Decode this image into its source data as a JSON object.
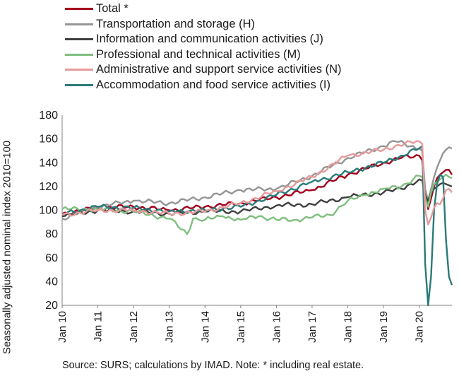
{
  "chart_data": {
    "type": "line",
    "ylabel": "Seasonally adjusted nominal index 2010=100",
    "ylim": [
      20,
      180
    ],
    "yticks": [
      20,
      40,
      60,
      80,
      100,
      120,
      140,
      160,
      180
    ],
    "xticks": [
      "Jan 10",
      "Jan 11",
      "Jan 12",
      "Jan 13",
      "Jan 14",
      "Jan 15",
      "Jan 16",
      "Jan 17",
      "Jan 18",
      "Jan 19",
      "Jan 20"
    ],
    "x_start": "2010-01",
    "x_end": "2020-12",
    "frequency": "monthly",
    "legend_position": "top",
    "grid": false,
    "source": "Source:  SURS; calculations by IMAD. Note: * including real estate.",
    "series": [
      {
        "name": "Total *",
        "color": "#a3001b",
        "points": [
          [
            "2010-01",
            97
          ],
          [
            "2011-01",
            102
          ],
          [
            "2012-01",
            103
          ],
          [
            "2013-01",
            100
          ],
          [
            "2014-01",
            103
          ],
          [
            "2015-01",
            106
          ],
          [
            "2016-01",
            111
          ],
          [
            "2017-01",
            117
          ],
          [
            "2018-01",
            130
          ],
          [
            "2019-01",
            140
          ],
          [
            "2019-07",
            144
          ],
          [
            "2020-01",
            146
          ],
          [
            "2020-02",
            142
          ],
          [
            "2020-03",
            115
          ],
          [
            "2020-04",
            101
          ],
          [
            "2020-05",
            110
          ],
          [
            "2020-06",
            120
          ],
          [
            "2020-07",
            127
          ],
          [
            "2020-08",
            130
          ],
          [
            "2020-09",
            132
          ],
          [
            "2020-10",
            134
          ],
          [
            "2020-11",
            134
          ],
          [
            "2020-12",
            130
          ]
        ]
      },
      {
        "name": "Transportation and storage (H)",
        "color": "#959595",
        "points": [
          [
            "2010-01",
            93
          ],
          [
            "2011-01",
            103
          ],
          [
            "2012-01",
            108
          ],
          [
            "2013-01",
            106
          ],
          [
            "2014-01",
            111
          ],
          [
            "2015-01",
            117
          ],
          [
            "2016-01",
            118
          ],
          [
            "2017-01",
            129
          ],
          [
            "2018-01",
            144
          ],
          [
            "2019-01",
            154
          ],
          [
            "2019-05",
            158
          ],
          [
            "2020-01",
            152
          ],
          [
            "2020-02",
            150
          ],
          [
            "2020-03",
            118
          ],
          [
            "2020-04",
            108
          ],
          [
            "2020-05",
            118
          ],
          [
            "2020-06",
            128
          ],
          [
            "2020-07",
            136
          ],
          [
            "2020-08",
            142
          ],
          [
            "2020-09",
            148
          ],
          [
            "2020-10",
            151
          ],
          [
            "2020-11",
            153
          ],
          [
            "2020-12",
            152
          ]
        ]
      },
      {
        "name": "Information and communication activities (J)",
        "color": "#404040",
        "points": [
          [
            "2010-01",
            95
          ],
          [
            "2011-01",
            100
          ],
          [
            "2012-01",
            99
          ],
          [
            "2013-01",
            97
          ],
          [
            "2014-01",
            99
          ],
          [
            "2015-01",
            99
          ],
          [
            "2016-01",
            104
          ],
          [
            "2017-01",
            105
          ],
          [
            "2018-01",
            111
          ],
          [
            "2019-01",
            115
          ],
          [
            "2019-07",
            118
          ],
          [
            "2020-01",
            126
          ],
          [
            "2020-02",
            125
          ],
          [
            "2020-03",
            112
          ],
          [
            "2020-04",
            108
          ],
          [
            "2020-05",
            115
          ],
          [
            "2020-06",
            118
          ],
          [
            "2020-07",
            120
          ],
          [
            "2020-08",
            122
          ],
          [
            "2020-09",
            123
          ],
          [
            "2020-10",
            122
          ],
          [
            "2020-11",
            121
          ],
          [
            "2020-12",
            120
          ]
        ]
      },
      {
        "name": "Professional and technical activities (M)",
        "color": "#7fbf7f",
        "points": [
          [
            "2010-01",
            101
          ],
          [
            "2011-01",
            101
          ],
          [
            "2012-01",
            99
          ],
          [
            "2013-01",
            93
          ],
          [
            "2013-07",
            80
          ],
          [
            "2013-09",
            93
          ],
          [
            "2014-01",
            92
          ],
          [
            "2014-07",
            95
          ],
          [
            "2015-01",
            92
          ],
          [
            "2015-07",
            95
          ],
          [
            "2016-01",
            92
          ],
          [
            "2016-07",
            92
          ],
          [
            "2017-01",
            94
          ],
          [
            "2017-07",
            96
          ],
          [
            "2018-01",
            108
          ],
          [
            "2018-07",
            113
          ],
          [
            "2019-01",
            118
          ],
          [
            "2019-07",
            120
          ],
          [
            "2020-01",
            129
          ],
          [
            "2020-02",
            128
          ],
          [
            "2020-03",
            110
          ],
          [
            "2020-04",
            103
          ],
          [
            "2020-05",
            115
          ],
          [
            "2020-06",
            122
          ],
          [
            "2020-07",
            124
          ],
          [
            "2020-08",
            126
          ],
          [
            "2020-09",
            128
          ],
          [
            "2020-10",
            130
          ],
          [
            "2020-11",
            128
          ],
          [
            "2020-12",
            127
          ]
        ]
      },
      {
        "name": "Administrative and support service activities (N)",
        "color": "#e79a9a",
        "points": [
          [
            "2010-01",
            96
          ],
          [
            "2011-01",
            100
          ],
          [
            "2012-01",
            100
          ],
          [
            "2013-01",
            97
          ],
          [
            "2014-01",
            99
          ],
          [
            "2015-01",
            106
          ],
          [
            "2016-01",
            116
          ],
          [
            "2017-01",
            128
          ],
          [
            "2018-01",
            146
          ],
          [
            "2019-01",
            151
          ],
          [
            "2019-06",
            155
          ],
          [
            "2020-01",
            158
          ],
          [
            "2020-02",
            156
          ],
          [
            "2020-03",
            100
          ],
          [
            "2020-04",
            88
          ],
          [
            "2020-05",
            94
          ],
          [
            "2020-06",
            102
          ],
          [
            "2020-07",
            106
          ],
          [
            "2020-08",
            105
          ],
          [
            "2020-09",
            110
          ],
          [
            "2020-10",
            117
          ],
          [
            "2020-11",
            118
          ],
          [
            "2020-12",
            115
          ]
        ]
      },
      {
        "name": "Accommodation and food service activities (I)",
        "color": "#2a7a7a",
        "points": [
          [
            "2010-01",
            97
          ],
          [
            "2011-01",
            103
          ],
          [
            "2012-01",
            102
          ],
          [
            "2013-01",
            99
          ],
          [
            "2014-01",
            100
          ],
          [
            "2015-01",
            103
          ],
          [
            "2016-01",
            113
          ],
          [
            "2017-01",
            124
          ],
          [
            "2018-01",
            132
          ],
          [
            "2019-01",
            140
          ],
          [
            "2019-07",
            146
          ],
          [
            "2020-01",
            152
          ],
          [
            "2020-02",
            154
          ],
          [
            "2020-03",
            55
          ],
          [
            "2020-04",
            20
          ],
          [
            "2020-05",
            45
          ],
          [
            "2020-06",
            100
          ],
          [
            "2020-07",
            122
          ],
          [
            "2020-08",
            130
          ],
          [
            "2020-09",
            128
          ],
          [
            "2020-10",
            75
          ],
          [
            "2020-11",
            44
          ],
          [
            "2020-12",
            37
          ]
        ]
      }
    ]
  }
}
